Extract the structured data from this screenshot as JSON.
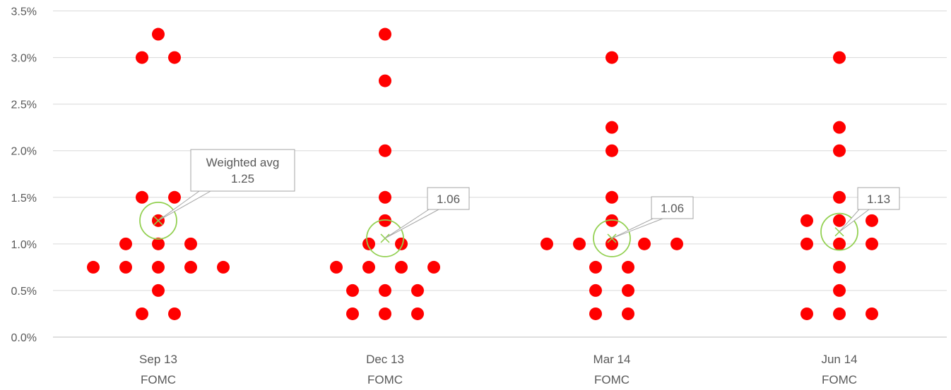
{
  "chart_data": {
    "type": "scatter",
    "title": "",
    "xlabel": "",
    "ylabel": "",
    "ylim": [
      0,
      3.5
    ],
    "yticks": [
      "0.0%",
      "0.5%",
      "1.0%",
      "1.5%",
      "2.0%",
      "2.5%",
      "3.0%",
      "3.5%"
    ],
    "grid": true,
    "categories": [
      {
        "line1": "Sep 13",
        "line2": "FOMC"
      },
      {
        "line1": "Dec 13",
        "line2": "FOMC"
      },
      {
        "line1": "Mar 14",
        "line2": "FOMC"
      },
      {
        "line1": "Jun 14",
        "line2": "FOMC"
      }
    ],
    "dot_color": "#ff0000",
    "avg_color": "#92d050",
    "groups": [
      {
        "category": "Sep 13 FOMC",
        "points": [
          {
            "slot": 0,
            "y": 3.25
          },
          {
            "slot": -0.5,
            "y": 3.0
          },
          {
            "slot": 0.5,
            "y": 3.0
          },
          {
            "slot": -0.5,
            "y": 1.5
          },
          {
            "slot": 0.5,
            "y": 1.5
          },
          {
            "slot": 0,
            "y": 1.25
          },
          {
            "slot": -1,
            "y": 1.0
          },
          {
            "slot": 0,
            "y": 1.0
          },
          {
            "slot": 1,
            "y": 1.0
          },
          {
            "slot": -2,
            "y": 0.75
          },
          {
            "slot": -1,
            "y": 0.75
          },
          {
            "slot": 0,
            "y": 0.75
          },
          {
            "slot": 1,
            "y": 0.75
          },
          {
            "slot": 2,
            "y": 0.75
          },
          {
            "slot": 0,
            "y": 0.5
          },
          {
            "slot": -0.5,
            "y": 0.25
          },
          {
            "slot": 0.5,
            "y": 0.25
          }
        ],
        "weighted_avg": 1.25,
        "annotation": {
          "lines": [
            "Weighted avg",
            "1.25"
          ]
        }
      },
      {
        "category": "Dec 13 FOMC",
        "points": [
          {
            "slot": 0,
            "y": 3.25
          },
          {
            "slot": 0,
            "y": 2.75
          },
          {
            "slot": 0,
            "y": 2.0
          },
          {
            "slot": 0,
            "y": 1.5
          },
          {
            "slot": 0,
            "y": 1.25
          },
          {
            "slot": -0.5,
            "y": 1.0
          },
          {
            "slot": 0.5,
            "y": 1.0
          },
          {
            "slot": -1.5,
            "y": 0.75
          },
          {
            "slot": -0.5,
            "y": 0.75
          },
          {
            "slot": 0.5,
            "y": 0.75
          },
          {
            "slot": 1.5,
            "y": 0.75
          },
          {
            "slot": -1,
            "y": 0.5
          },
          {
            "slot": 0,
            "y": 0.5
          },
          {
            "slot": 1,
            "y": 0.5
          },
          {
            "slot": -1,
            "y": 0.25
          },
          {
            "slot": 0,
            "y": 0.25
          },
          {
            "slot": 1,
            "y": 0.25
          }
        ],
        "weighted_avg": 1.06,
        "annotation": {
          "lines": [
            "1.06"
          ]
        }
      },
      {
        "category": "Mar 14 FOMC",
        "points": [
          {
            "slot": 0,
            "y": 3.0
          },
          {
            "slot": 0,
            "y": 2.25
          },
          {
            "slot": 0,
            "y": 2.0
          },
          {
            "slot": 0,
            "y": 1.5
          },
          {
            "slot": 0,
            "y": 1.25
          },
          {
            "slot": -2,
            "y": 1.0
          },
          {
            "slot": -1,
            "y": 1.0
          },
          {
            "slot": 0,
            "y": 1.0
          },
          {
            "slot": 1,
            "y": 1.0
          },
          {
            "slot": 2,
            "y": 1.0
          },
          {
            "slot": -0.5,
            "y": 0.75
          },
          {
            "slot": 0.5,
            "y": 0.75
          },
          {
            "slot": -0.5,
            "y": 0.5
          },
          {
            "slot": 0.5,
            "y": 0.5
          },
          {
            "slot": -0.5,
            "y": 0.25
          },
          {
            "slot": 0.5,
            "y": 0.25
          }
        ],
        "weighted_avg": 1.06,
        "annotation": {
          "lines": [
            "1.06"
          ]
        }
      },
      {
        "category": "Jun 14 FOMC",
        "points": [
          {
            "slot": 0,
            "y": 3.0
          },
          {
            "slot": 0,
            "y": 2.25
          },
          {
            "slot": 0,
            "y": 2.0
          },
          {
            "slot": 0,
            "y": 1.5
          },
          {
            "slot": -1,
            "y": 1.25
          },
          {
            "slot": 0,
            "y": 1.25
          },
          {
            "slot": 1,
            "y": 1.25
          },
          {
            "slot": -1,
            "y": 1.0
          },
          {
            "slot": 0,
            "y": 1.0
          },
          {
            "slot": 1,
            "y": 1.0
          },
          {
            "slot": 0,
            "y": 0.75
          },
          {
            "slot": 0,
            "y": 0.5
          },
          {
            "slot": -1,
            "y": 0.25
          },
          {
            "slot": 0,
            "y": 0.25
          },
          {
            "slot": 1,
            "y": 0.25
          }
        ],
        "weighted_avg": 1.13,
        "annotation": {
          "lines": [
            "1.13"
          ]
        }
      }
    ]
  }
}
